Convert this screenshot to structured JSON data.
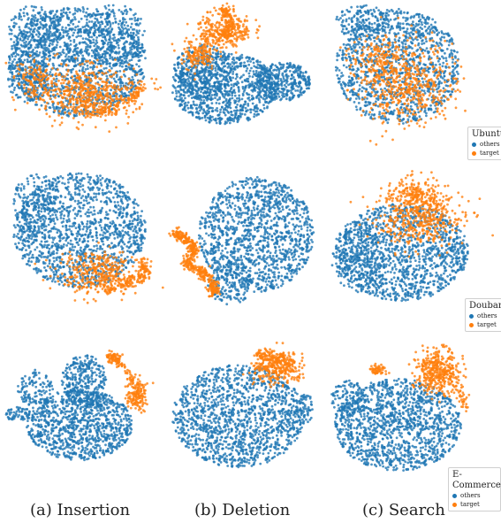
{
  "figure": {
    "captions": [
      "(a) Insertion",
      "(b) Deletion",
      "(c) Search"
    ],
    "legends": [
      {
        "title": "Ubuntu",
        "entries": [
          "others",
          "target"
        ]
      },
      {
        "title": "Douban",
        "entries": [
          "others",
          "target"
        ]
      },
      {
        "title": "E-Commerce",
        "entries": [
          "others",
          "target"
        ]
      }
    ]
  },
  "colors": {
    "others": "#1f77b4",
    "target": "#ff7f0e"
  },
  "chart_data": [
    {
      "type": "scatter",
      "dataset": "Ubuntu",
      "method": "Insertion",
      "series": [
        {
          "name": "others"
        },
        {
          "name": "target"
        }
      ],
      "target_region": "spread through lower half, curved tail to the right"
    },
    {
      "type": "scatter",
      "dataset": "Ubuntu",
      "method": "Deletion",
      "series": [
        {
          "name": "others"
        },
        {
          "name": "target"
        }
      ],
      "target_region": "separated cluster at top"
    },
    {
      "type": "scatter",
      "dataset": "Ubuntu",
      "method": "Search",
      "series": [
        {
          "name": "others"
        },
        {
          "name": "target"
        }
      ],
      "target_region": "mixed throughout"
    },
    {
      "type": "scatter",
      "dataset": "Douban",
      "method": "Insertion",
      "series": [
        {
          "name": "others"
        },
        {
          "name": "target"
        }
      ],
      "target_region": "lower right with tail"
    },
    {
      "type": "scatter",
      "dataset": "Douban",
      "method": "Deletion",
      "series": [
        {
          "name": "others"
        },
        {
          "name": "target"
        }
      ],
      "target_region": "separated snake-like strand on left"
    },
    {
      "type": "scatter",
      "dataset": "Douban",
      "method": "Search",
      "series": [
        {
          "name": "others"
        },
        {
          "name": "target"
        }
      ],
      "target_region": "upper part of cluster"
    },
    {
      "type": "scatter",
      "dataset": "E-Commerce",
      "method": "Insertion",
      "series": [
        {
          "name": "others"
        },
        {
          "name": "target"
        }
      ],
      "target_region": "small separated clusters upper right"
    },
    {
      "type": "scatter",
      "dataset": "E-Commerce",
      "method": "Deletion",
      "series": [
        {
          "name": "others"
        },
        {
          "name": "target"
        }
      ],
      "target_region": "separated cluster top right"
    },
    {
      "type": "scatter",
      "dataset": "E-Commerce",
      "method": "Search",
      "series": [
        {
          "name": "others"
        },
        {
          "name": "target"
        }
      ],
      "target_region": "separated clusters top"
    }
  ]
}
